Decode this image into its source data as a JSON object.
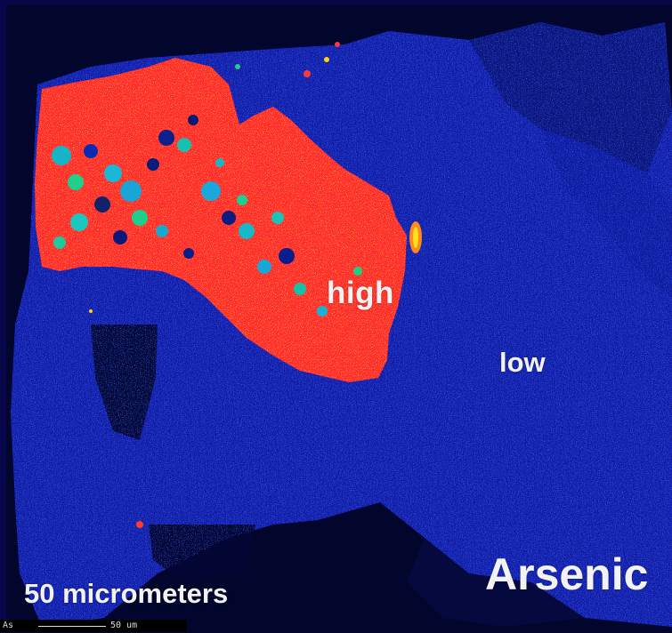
{
  "labels": {
    "high": "high",
    "low": "low",
    "element": "Arsenic",
    "scale_caption": "50 micrometers"
  },
  "scale_bar": {
    "element_code": "As",
    "value": "50 um"
  },
  "colors": {
    "background_frame": "#07064a",
    "low_concentration": "#1526c8",
    "high_concentration": "#ff2e2a",
    "mid_concentration": "#ffd21a",
    "label_text": "#f2f2f2"
  }
}
